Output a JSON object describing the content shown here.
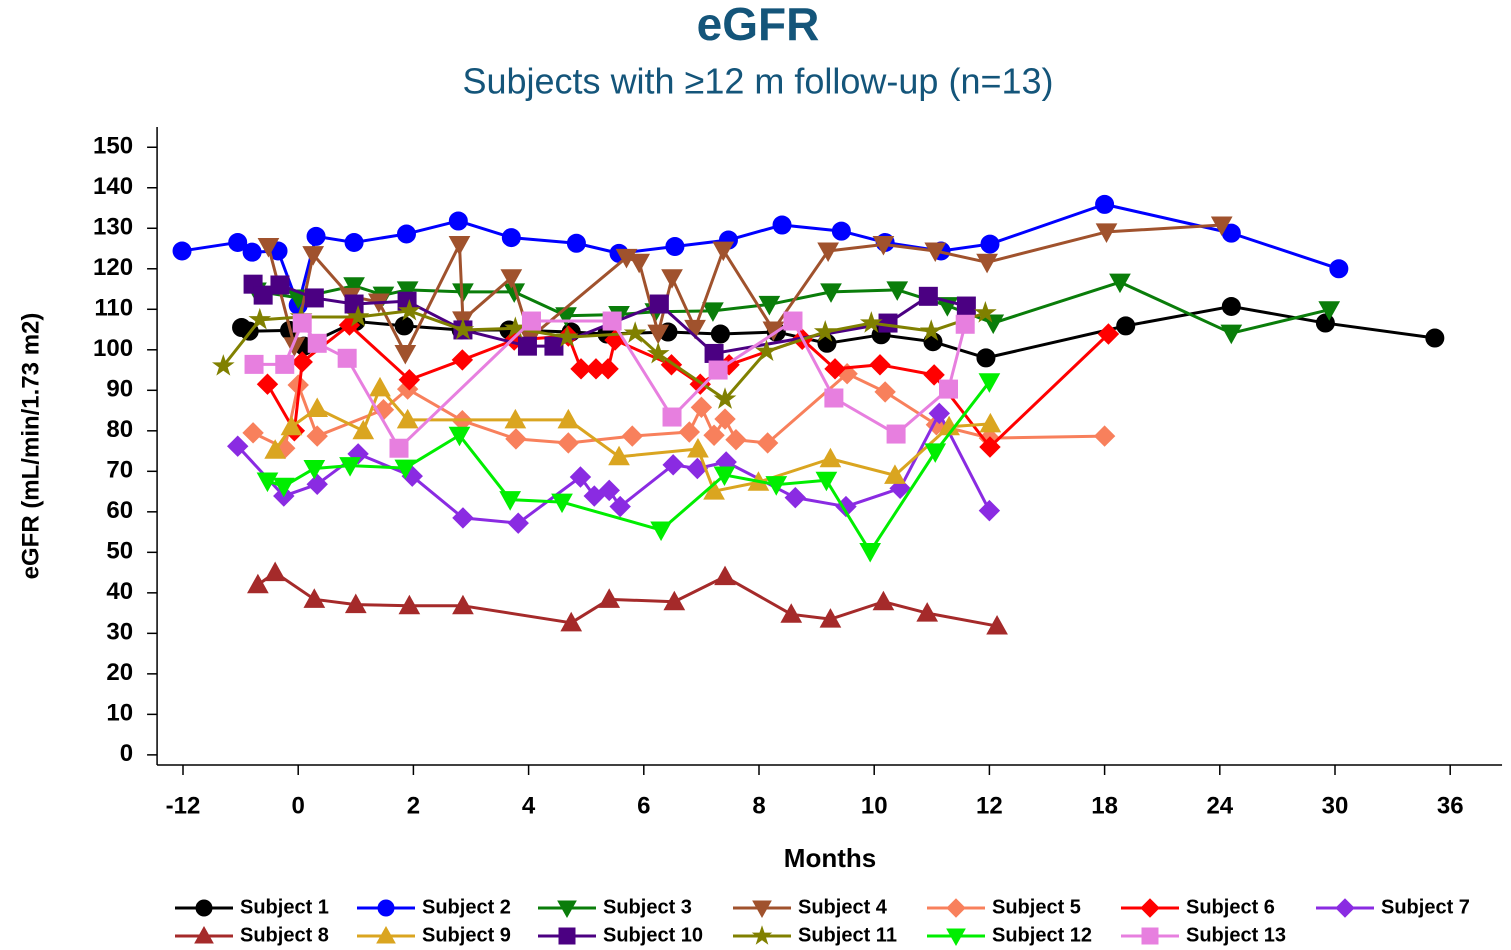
{
  "chart_data": {
    "type": "line",
    "title": "eGFR",
    "subtitle": "Subjects with ≥12 m follow-up (n=13)",
    "x_label": "Months",
    "y_label": "eGFR (mL/min/1.73 m2)",
    "xlim": [
      -14.7,
      38.7
    ],
    "xticks": [
      -12,
      0,
      2,
      4,
      6,
      8,
      10,
      12,
      18,
      24,
      30,
      36
    ],
    "x_scale": "tick-segments",
    "ylim": [
      -2.5,
      155
    ],
    "yticks": [
      0,
      10,
      20,
      30,
      40,
      50,
      60,
      70,
      80,
      90,
      100,
      110,
      120,
      130,
      140,
      150
    ],
    "legend": "bottom",
    "series": [
      {
        "name": "Subject 1",
        "color": "#000000",
        "marker": "circle",
        "x": [
          -5.9,
          -5.1,
          -0.9,
          0.1,
          1.0,
          1.84,
          2.83,
          3.66,
          4.74,
          5.36,
          6.42,
          7.33,
          8.3,
          9.18,
          10.12,
          11.02,
          11.94,
          19.1,
          24.6,
          29.5,
          35.2
        ],
        "values": [
          105.5,
          104.6,
          104.8,
          100.9,
          107,
          105.9,
          104.9,
          104.9,
          104.4,
          103.9,
          104.4,
          103.9,
          104.4,
          101.6,
          103.7,
          102,
          98,
          105.9,
          110.7,
          106.6,
          102.9
        ]
      },
      {
        "name": "Subject 2",
        "color": "#0000ff",
        "marker": "circle",
        "x": [
          -12.1,
          -6.3,
          -4.8,
          -2.1,
          0,
          0.31,
          0.97,
          1.88,
          2.78,
          3.7,
          4.83,
          5.57,
          6.54,
          7.47,
          8.4,
          9.43,
          10.19,
          11.16,
          12.03,
          18,
          24.6,
          30.2
        ],
        "values": [
          124.4,
          126.5,
          124.1,
          124.4,
          111,
          128,
          126.5,
          128.6,
          131.8,
          127.7,
          126.3,
          123.8,
          125.5,
          127.1,
          130.8,
          129.3,
          126.5,
          124.4,
          126.1,
          135.9,
          128.8,
          120
        ]
      },
      {
        "name": "Subject 3",
        "color": "#0a7d0a",
        "marker": "triangle-down",
        "x": [
          -4.4,
          0,
          0.97,
          1.48,
          1.9,
          2.86,
          3.75,
          4.65,
          5.57,
          6.2,
          7.2,
          8.18,
          9.25,
          10.4,
          11.27,
          12.2,
          18.8,
          24.6,
          29.7
        ],
        "values": [
          114.5,
          112.8,
          115.8,
          113.5,
          114.8,
          114.3,
          114.3,
          108.4,
          108.7,
          109.4,
          109.6,
          111.2,
          114.3,
          114.8,
          110.9,
          106.6,
          116.7,
          104.1,
          109.9
        ]
      },
      {
        "name": "Subject 4",
        "color": "#a0522d",
        "marker": "triangle-down",
        "x": [
          -3.1,
          -0.4,
          0.26,
          0.9,
          1.4,
          1.86,
          2.8,
          2.86,
          3.7,
          4.03,
          5.7,
          5.92,
          6.25,
          6.49,
          6.89,
          7.38,
          8.25,
          9.2,
          10.16,
          11.06,
          11.96,
          18.1,
          24.1
        ],
        "values": [
          125.5,
          101,
          123.5,
          113.2,
          111.8,
          99.1,
          126,
          107.4,
          117.8,
          103,
          122.8,
          121.6,
          104.1,
          117.8,
          105.3,
          124.6,
          104.9,
          124.4,
          126,
          124.4,
          121.6,
          129.1,
          130.8
        ]
      },
      {
        "name": "Subject 5",
        "color": "#f8805c",
        "marker": "diamond",
        "x": [
          -4.7,
          -1.4,
          0,
          0.33,
          1.48,
          1.9,
          2.85,
          3.78,
          4.69,
          5.8,
          6.79,
          7.0,
          7.22,
          7.41,
          7.6,
          8.15,
          9.53,
          10.19,
          11.08,
          12.0,
          18.0
        ],
        "values": [
          79.5,
          75.7,
          91.3,
          78.7,
          85.2,
          90.3,
          82.5,
          78,
          77,
          78.7,
          79.7,
          85.8,
          78.9,
          82.9,
          77.8,
          77,
          94.1,
          89.6,
          81.5,
          78.2,
          78.7
        ]
      },
      {
        "name": "Subject 6",
        "color": "#ff0000",
        "marker": "diamond",
        "x": [
          -3.2,
          -0.4,
          0.07,
          0.89,
          1.93,
          2.85,
          3.75,
          4.69,
          4.91,
          5.17,
          5.38,
          5.5,
          6.48,
          6.98,
          7.48,
          8.75,
          9.32,
          10.1,
          11.04,
          12.03,
          18.2
        ],
        "values": [
          91.5,
          80,
          97,
          106.1,
          92.6,
          97.5,
          102.4,
          103.4,
          95.3,
          95.3,
          95.3,
          102.4,
          96.3,
          91.5,
          96.3,
          102.6,
          95.3,
          96.3,
          93.8,
          76,
          103.9
        ]
      },
      {
        "name": "Subject 7",
        "color": "#8a2be2",
        "marker": "diamond",
        "x": [
          -6.3,
          -1.5,
          0.33,
          1.04,
          1.98,
          2.86,
          3.82,
          4.9,
          5.14,
          5.4,
          5.59,
          6.51,
          6.93,
          7.43,
          8.63,
          9.51,
          10.45,
          11.13,
          12.0
        ],
        "values": [
          76.2,
          63.9,
          66.8,
          74.3,
          68.8,
          58.5,
          57.2,
          68.6,
          63.9,
          65.3,
          61.3,
          71.6,
          70.7,
          72.3,
          63.5,
          61.3,
          65.8,
          84.3,
          60.3
        ]
      },
      {
        "name": "Subject 8",
        "color": "#a52a2a",
        "marker": "triangle-up",
        "x": [
          -4.2,
          -2.4,
          0.28,
          1.0,
          1.93,
          2.86,
          4.74,
          5.4,
          6.53,
          7.41,
          8.56,
          9.24,
          10.16,
          10.92,
          12.4
        ],
        "values": [
          42,
          45,
          38.4,
          37.1,
          36.8,
          36.8,
          32.6,
          38.4,
          37.8,
          44,
          34.7,
          33.5,
          37.8,
          35,
          31.8
        ]
      },
      {
        "name": "Subject 9",
        "color": "#daa520",
        "marker": "triangle-up",
        "x": [
          -2.4,
          -0.7,
          0.33,
          1.13,
          1.42,
          1.9,
          3.77,
          4.69,
          5.57,
          6.94,
          7.22,
          7.99,
          9.24,
          10.36,
          11.3,
          12.05
        ],
        "values": [
          75.2,
          81,
          85.5,
          80,
          90.6,
          82.7,
          82.7,
          82.7,
          73.6,
          75.5,
          65.1,
          67.3,
          73.1,
          69,
          81,
          81.7
        ]
      },
      {
        "name": "Subject 10",
        "color": "#4b0082",
        "marker": "square",
        "x": [
          -4.7,
          -3.65,
          -1.9,
          0.28,
          0.97,
          1.89,
          2.86,
          3.98,
          4.44,
          6.27,
          7.22,
          10.24,
          10.94,
          11.6
        ],
        "values": [
          116.2,
          113.5,
          116,
          112.8,
          111.3,
          112,
          104.9,
          100.9,
          100.9,
          111.3,
          99.1,
          106.6,
          113.2,
          110.8
        ]
      },
      {
        "name": "Subject 11",
        "color": "#808000",
        "marker": "star",
        "x": [
          -7.8,
          -4.0,
          0.05,
          1.04,
          1.93,
          2.86,
          3.77,
          4.67,
          5.85,
          6.25,
          7.41,
          8.13,
          9.15,
          9.95,
          10.99,
          11.93
        ],
        "values": [
          96,
          107.4,
          108.1,
          108.1,
          109.6,
          104.9,
          105.3,
          103.1,
          104.1,
          99,
          87.8,
          99.6,
          104.4,
          106.6,
          104.6,
          109.1
        ]
      },
      {
        "name": "Subject 12",
        "color": "#00ee00",
        "marker": "triangle-down",
        "x": [
          -3.2,
          -1.5,
          0.28,
          0.9,
          1.86,
          2.8,
          3.68,
          4.58,
          6.3,
          7.4,
          8.3,
          9.17,
          9.93,
          11.06,
          12.0
        ],
        "values": [
          67.6,
          66.3,
          70.7,
          71.4,
          70.8,
          78.9,
          63,
          62.4,
          55.5,
          69.1,
          66.7,
          67.8,
          50.2,
          74.8,
          92.1
        ]
      },
      {
        "name": "Subject 13",
        "color": "#e77fdf",
        "marker": "square",
        "x": [
          -4.6,
          -1.4,
          0.07,
          0.33,
          0.85,
          1.75,
          4.05,
          5.45,
          6.49,
          7.29,
          8.59,
          9.3,
          10.38,
          11.29,
          11.58
        ],
        "values": [
          96.4,
          96.4,
          106.6,
          101.6,
          97.9,
          75.7,
          107.1,
          107.1,
          83.4,
          95,
          107.1,
          88.1,
          79.2,
          90.3,
          106.3
        ]
      }
    ]
  }
}
